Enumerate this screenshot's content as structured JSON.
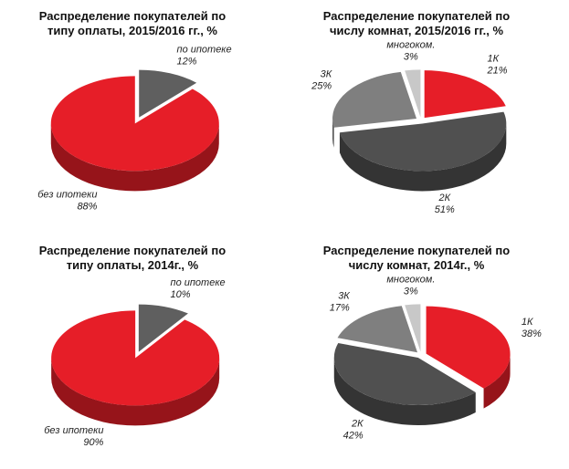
{
  "chart_data": [
    {
      "type": "pie",
      "title": "Распределение покупателей по типу оплаты, 2015/2016 гг., %",
      "categories": [
        "по ипотеке",
        "без ипотеки"
      ],
      "values": [
        12,
        88
      ],
      "value_labels": [
        "12%",
        "88%"
      ],
      "colors": [
        "#5f5f5f",
        "#e61e28"
      ]
    },
    {
      "type": "pie",
      "title": "Распределение покупателей по числу комнат, 2015/2016 гг., %",
      "categories": [
        "1К",
        "2К",
        "3К",
        "многоком."
      ],
      "values": [
        21,
        51,
        25,
        3
      ],
      "value_labels": [
        "21%",
        "51%",
        "25%",
        "3%"
      ],
      "colors": [
        "#e61e28",
        "#505050",
        "#7f7f7f",
        "#c8c8c8"
      ]
    },
    {
      "type": "pie",
      "title": "Распределение покупателей по типу оплаты, 2014г., %",
      "categories": [
        "по ипотеке",
        "без ипотеки"
      ],
      "values": [
        10,
        90
      ],
      "value_labels": [
        "10%",
        "90%"
      ],
      "colors": [
        "#5f5f5f",
        "#e61e28"
      ]
    },
    {
      "type": "pie",
      "title": "Распределение покупателей по числу комнат, 2014г., %",
      "categories": [
        "1К",
        "2К",
        "3К",
        "многоком."
      ],
      "values": [
        38,
        42,
        17,
        3
      ],
      "value_labels": [
        "38%",
        "42%",
        "17%",
        "3%"
      ],
      "colors": [
        "#e61e28",
        "#505050",
        "#7f7f7f",
        "#c8c8c8"
      ]
    }
  ]
}
